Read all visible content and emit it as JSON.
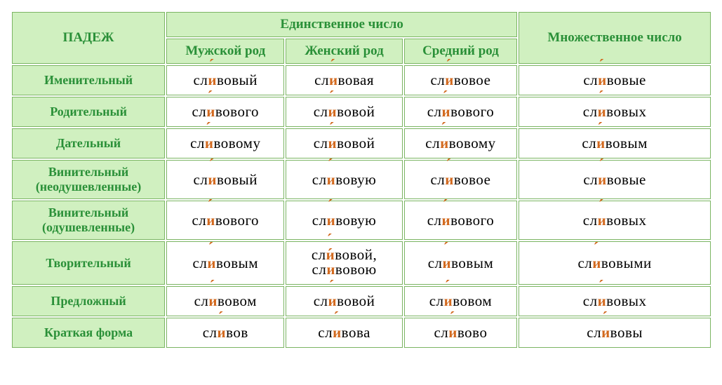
{
  "colors": {
    "header_bg": "#d0f0c0",
    "header_text": "#2a9038",
    "border": "#7bb563",
    "cell_bg": "#ffffff",
    "cell_text": "#000000",
    "highlight": "#d2691e"
  },
  "headers": {
    "case": "ПАДЕЖ",
    "singular": "Единственное число",
    "plural": "Множественное число",
    "masc": "Мужской род",
    "fem": "Женский род",
    "neut": "Средний род"
  },
  "rows": [
    {
      "label": "Именительный",
      "forms": [
        [
          {
            "t": "сл"
          },
          {
            "t": "и",
            "s": 1
          },
          {
            "t": "вовый"
          }
        ],
        [
          {
            "t": "сл"
          },
          {
            "t": "и",
            "s": 1
          },
          {
            "t": "вовая"
          }
        ],
        [
          {
            "t": "сл"
          },
          {
            "t": "и",
            "s": 1
          },
          {
            "t": "вовое"
          }
        ],
        [
          {
            "t": "сл"
          },
          {
            "t": "и",
            "s": 1
          },
          {
            "t": "вовые"
          }
        ]
      ]
    },
    {
      "label": "Родительный",
      "forms": [
        [
          {
            "t": "сл"
          },
          {
            "t": "и",
            "s": 1
          },
          {
            "t": "вового"
          }
        ],
        [
          {
            "t": "сл"
          },
          {
            "t": "и",
            "s": 1
          },
          {
            "t": "вовой"
          }
        ],
        [
          {
            "t": "сл"
          },
          {
            "t": "и",
            "s": 1
          },
          {
            "t": "вового"
          }
        ],
        [
          {
            "t": "сл"
          },
          {
            "t": "и",
            "s": 1
          },
          {
            "t": "вовых"
          }
        ]
      ]
    },
    {
      "label": "Дательный",
      "forms": [
        [
          {
            "t": "сл"
          },
          {
            "t": "и",
            "s": 1
          },
          {
            "t": "вовому"
          }
        ],
        [
          {
            "t": "сл"
          },
          {
            "t": "и",
            "s": 1
          },
          {
            "t": "вовой"
          }
        ],
        [
          {
            "t": "сл"
          },
          {
            "t": "и",
            "s": 1
          },
          {
            "t": "вовому"
          }
        ],
        [
          {
            "t": "сл"
          },
          {
            "t": "и",
            "s": 1
          },
          {
            "t": "вовым"
          }
        ]
      ]
    },
    {
      "label": "Винительный (неодушевленные)",
      "forms": [
        [
          {
            "t": "сл"
          },
          {
            "t": "и",
            "s": 1
          },
          {
            "t": "вовый"
          }
        ],
        [
          {
            "t": "сл"
          },
          {
            "t": "и",
            "s": 1
          },
          {
            "t": "вовую"
          }
        ],
        [
          {
            "t": "сл"
          },
          {
            "t": "и",
            "s": 1
          },
          {
            "t": "вовое"
          }
        ],
        [
          {
            "t": "сл"
          },
          {
            "t": "и",
            "s": 1
          },
          {
            "t": "вовые"
          }
        ]
      ]
    },
    {
      "label": "Винительный (одушевленные)",
      "forms": [
        [
          {
            "t": "сл"
          },
          {
            "t": "и",
            "s": 1
          },
          {
            "t": "вового"
          }
        ],
        [
          {
            "t": "сл"
          },
          {
            "t": "и",
            "s": 1
          },
          {
            "t": "вовую"
          }
        ],
        [
          {
            "t": "сл"
          },
          {
            "t": "и",
            "s": 1
          },
          {
            "t": "вового"
          }
        ],
        [
          {
            "t": "сл"
          },
          {
            "t": "и",
            "s": 1
          },
          {
            "t": "вовых"
          }
        ]
      ]
    },
    {
      "label": "Творительный",
      "forms": [
        [
          {
            "t": "сл"
          },
          {
            "t": "и",
            "s": 1
          },
          {
            "t": "вовым"
          }
        ],
        [
          {
            "t": "сл"
          },
          {
            "t": "и",
            "s": 1
          },
          {
            "t": "вовой,"
          },
          {
            "t": "\n"
          },
          {
            "t": "сл"
          },
          {
            "t": "и",
            "s": 1
          },
          {
            "t": "вовою"
          }
        ],
        [
          {
            "t": "сл"
          },
          {
            "t": "и",
            "s": 1
          },
          {
            "t": "вовым"
          }
        ],
        [
          {
            "t": "сл"
          },
          {
            "t": "и",
            "s": 1
          },
          {
            "t": "вовыми"
          }
        ]
      ]
    },
    {
      "label": "Предложный",
      "forms": [
        [
          {
            "t": "сл"
          },
          {
            "t": "и",
            "s": 1
          },
          {
            "t": "вовом"
          }
        ],
        [
          {
            "t": "сл"
          },
          {
            "t": "и",
            "s": 1
          },
          {
            "t": "вовой"
          }
        ],
        [
          {
            "t": "сл"
          },
          {
            "t": "и",
            "s": 1
          },
          {
            "t": "вовом"
          }
        ],
        [
          {
            "t": "сл"
          },
          {
            "t": "и",
            "s": 1
          },
          {
            "t": "вовых"
          }
        ]
      ]
    },
    {
      "label": "Краткая форма",
      "forms": [
        [
          {
            "t": "сл"
          },
          {
            "t": "и",
            "s": 1
          },
          {
            "t": "вов"
          }
        ],
        [
          {
            "t": "сл"
          },
          {
            "t": "и",
            "s": 1
          },
          {
            "t": "вова"
          }
        ],
        [
          {
            "t": "сл"
          },
          {
            "t": "и",
            "s": 1
          },
          {
            "t": "вово"
          }
        ],
        [
          {
            "t": "сл"
          },
          {
            "t": "и",
            "s": 1
          },
          {
            "t": "вовы"
          }
        ]
      ]
    }
  ]
}
